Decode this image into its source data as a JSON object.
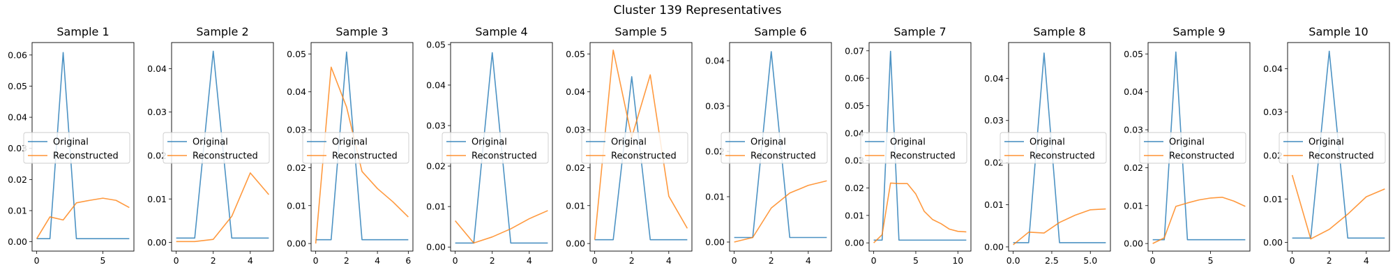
{
  "figure": {
    "title": "Cluster 139 Representatives",
    "colors": {
      "original": "#1f77b4",
      "reconstructed": "#ff7f0e"
    },
    "legend_labels": [
      "Original",
      "Reconstructed"
    ],
    "legend_placement": "center-left"
  },
  "chart_data": [
    {
      "type": "line",
      "title": "Sample 1",
      "xlim": [
        -0.35,
        7.35
      ],
      "ylim": [
        -0.003,
        0.064
      ],
      "xticks": [
        0,
        5
      ],
      "xtick_labels": [
        "0",
        "5"
      ],
      "yticks": [
        0.0,
        0.01,
        0.02,
        0.03,
        0.04,
        0.05,
        0.06
      ],
      "ytick_labels": [
        "0.00",
        "0.01",
        "0.02",
        "0.03",
        "0.04",
        "0.05",
        "0.06"
      ],
      "x": [
        0,
        1,
        2,
        3,
        4,
        5,
        6,
        7
      ],
      "series": [
        {
          "name": "Original",
          "values": [
            0.001,
            0.001,
            0.0608,
            0.001,
            0.001,
            0.001,
            0.001,
            0.001
          ]
        },
        {
          "name": "Reconstructed",
          "values": [
            0.001,
            0.008,
            0.007,
            0.0125,
            0.0133,
            0.014,
            0.0133,
            0.011
          ]
        }
      ]
    },
    {
      "type": "line",
      "title": "Sample 2",
      "xlim": [
        -0.25,
        5.25
      ],
      "ylim": [
        -0.002,
        0.046
      ],
      "xticks": [
        0,
        2,
        4
      ],
      "xtick_labels": [
        "0",
        "2",
        "4"
      ],
      "yticks": [
        0.0,
        0.01,
        0.02,
        0.03,
        0.04
      ],
      "ytick_labels": [
        "0.00",
        "0.01",
        "0.02",
        "0.03",
        "0.04"
      ],
      "x": [
        0,
        1,
        2,
        3,
        4,
        5
      ],
      "series": [
        {
          "name": "Original",
          "values": [
            0.001,
            0.001,
            0.044,
            0.001,
            0.001,
            0.001
          ]
        },
        {
          "name": "Reconstructed",
          "values": [
            0.0002,
            0.0002,
            0.0007,
            0.006,
            0.016,
            0.011
          ]
        }
      ]
    },
    {
      "type": "line",
      "title": "Sample 3",
      "xlim": [
        -0.3,
        6.3
      ],
      "ylim": [
        -0.002,
        0.053
      ],
      "xticks": [
        0,
        2,
        4,
        6
      ],
      "xtick_labels": [
        "0",
        "2",
        "4",
        "6"
      ],
      "yticks": [
        0.0,
        0.01,
        0.02,
        0.03,
        0.04,
        0.05
      ],
      "ytick_labels": [
        "0.00",
        "0.01",
        "0.02",
        "0.03",
        "0.04",
        "0.05"
      ],
      "x": [
        0,
        1,
        2,
        3,
        4,
        5,
        6
      ],
      "series": [
        {
          "name": "Original",
          "values": [
            0.001,
            0.001,
            0.0505,
            0.001,
            0.001,
            0.001,
            0.001
          ]
        },
        {
          "name": "Reconstructed",
          "values": [
            0.0,
            0.0465,
            0.036,
            0.019,
            0.0145,
            0.011,
            0.007
          ]
        }
      ]
    },
    {
      "type": "line",
      "title": "Sample 4",
      "xlim": [
        -0.25,
        5.25
      ],
      "ylim": [
        -0.001,
        0.0505
      ],
      "xticks": [
        0,
        2,
        4
      ],
      "xtick_labels": [
        "0",
        "2",
        "4"
      ],
      "yticks": [
        0.0,
        0.01,
        0.02,
        0.03,
        0.04,
        0.05
      ],
      "ytick_labels": [
        "0.00",
        "0.01",
        "0.02",
        "0.03",
        "0.04",
        "0.05"
      ],
      "x": [
        0,
        1,
        2,
        3,
        4,
        5
      ],
      "series": [
        {
          "name": "Original",
          "values": [
            0.001,
            0.001,
            0.048,
            0.001,
            0.001,
            0.001
          ]
        },
        {
          "name": "Reconstructed",
          "values": [
            0.0065,
            0.001,
            0.0025,
            0.0045,
            0.007,
            0.009
          ]
        }
      ]
    },
    {
      "type": "line",
      "title": "Sample 5",
      "xlim": [
        -0.25,
        5.25
      ],
      "ylim": [
        -0.002,
        0.053
      ],
      "xticks": [
        0,
        2,
        4
      ],
      "xtick_labels": [
        "0",
        "2",
        "4"
      ],
      "yticks": [
        0.0,
        0.01,
        0.02,
        0.03,
        0.04,
        0.05
      ],
      "ytick_labels": [
        "0.00",
        "0.01",
        "0.02",
        "0.03",
        "0.04",
        "0.05"
      ],
      "x": [
        0,
        1,
        2,
        3,
        4,
        5
      ],
      "series": [
        {
          "name": "Original",
          "values": [
            0.001,
            0.001,
            0.044,
            0.001,
            0.001,
            0.001
          ]
        },
        {
          "name": "Reconstructed",
          "values": [
            0.001,
            0.051,
            0.028,
            0.0445,
            0.0125,
            0.004
          ]
        }
      ]
    },
    {
      "type": "line",
      "title": "Sample 6",
      "xlim": [
        -0.25,
        5.25
      ],
      "ylim": [
        -0.002,
        0.044
      ],
      "xticks": [
        0,
        2,
        4
      ],
      "xtick_labels": [
        "0",
        "2",
        "4"
      ],
      "yticks": [
        0.0,
        0.01,
        0.02,
        0.03,
        0.04
      ],
      "ytick_labels": [
        "0.00",
        "0.01",
        "0.02",
        "0.03",
        "0.04"
      ],
      "x": [
        0,
        1,
        2,
        3,
        4,
        5
      ],
      "series": [
        {
          "name": "Original",
          "values": [
            0.001,
            0.001,
            0.042,
            0.001,
            0.001,
            0.001
          ]
        },
        {
          "name": "Reconstructed",
          "values": [
            0.0,
            0.001,
            0.0075,
            0.0108,
            0.0125,
            0.0135
          ]
        }
      ]
    },
    {
      "type": "line",
      "title": "Sample 7",
      "xlim": [
        -0.55,
        11.55
      ],
      "ylim": [
        -0.003,
        0.073
      ],
      "xticks": [
        0,
        5,
        10
      ],
      "xtick_labels": [
        "0",
        "5",
        "10"
      ],
      "yticks": [
        0.0,
        0.01,
        0.02,
        0.03,
        0.04,
        0.05,
        0.06,
        0.07
      ],
      "ytick_labels": [
        "0.00",
        "0.01",
        "0.02",
        "0.03",
        "0.04",
        "0.05",
        "0.06",
        "0.07"
      ],
      "x": [
        0,
        1,
        2,
        3,
        4,
        5,
        6,
        7,
        8,
        9,
        10,
        11
      ],
      "series": [
        {
          "name": "Original",
          "values": [
            0.001,
            0.001,
            0.0698,
            0.001,
            0.001,
            0.001,
            0.001,
            0.001,
            0.001,
            0.001,
            0.001,
            0.001
          ]
        },
        {
          "name": "Reconstructed",
          "values": [
            0.0,
            0.003,
            0.0218,
            0.0216,
            0.0216,
            0.0178,
            0.0115,
            0.0085,
            0.007,
            0.005,
            0.0042,
            0.004
          ]
        }
      ]
    },
    {
      "type": "line",
      "title": "Sample 8",
      "xlim": [
        -0.3,
        6.3
      ],
      "ylim": [
        -0.001,
        0.0485
      ],
      "xticks": [
        0,
        2.5,
        5
      ],
      "xtick_labels": [
        "0.0",
        "2.5",
        "5.0"
      ],
      "yticks": [
        0.0,
        0.01,
        0.02,
        0.03,
        0.04
      ],
      "ytick_labels": [
        "0.00",
        "0.01",
        "0.02",
        "0.03",
        "0.04"
      ],
      "x": [
        0,
        1,
        2,
        3,
        4,
        5,
        6
      ],
      "series": [
        {
          "name": "Original",
          "values": [
            0.001,
            0.001,
            0.046,
            0.001,
            0.001,
            0.001,
            0.001
          ]
        },
        {
          "name": "Reconstructed",
          "values": [
            0.0005,
            0.0035,
            0.0033,
            0.0058,
            0.0075,
            0.0088,
            0.009
          ]
        }
      ]
    },
    {
      "type": "line",
      "title": "Sample 9",
      "xlim": [
        -0.4,
        8.4
      ],
      "ylim": [
        -0.002,
        0.053
      ],
      "xticks": [
        0,
        5
      ],
      "xtick_labels": [
        "0",
        "5"
      ],
      "yticks": [
        0.0,
        0.01,
        0.02,
        0.03,
        0.04,
        0.05
      ],
      "ytick_labels": [
        "0.00",
        "0.01",
        "0.02",
        "0.03",
        "0.04",
        "0.05"
      ],
      "x": [
        0,
        1,
        2,
        3,
        4,
        5,
        6,
        7,
        8
      ],
      "series": [
        {
          "name": "Original",
          "values": [
            0.001,
            0.001,
            0.0505,
            0.001,
            0.001,
            0.001,
            0.001,
            0.001,
            0.001
          ]
        },
        {
          "name": "Reconstructed",
          "values": [
            0.0,
            0.0015,
            0.0098,
            0.0107,
            0.0115,
            0.012,
            0.0122,
            0.0112,
            0.0098
          ]
        }
      ]
    },
    {
      "type": "line",
      "title": "Sample 10",
      "xlim": [
        -0.25,
        5.25
      ],
      "ylim": [
        -0.002,
        0.046
      ],
      "xticks": [
        0,
        2,
        4
      ],
      "xtick_labels": [
        "0",
        "2",
        "4"
      ],
      "yticks": [
        0.0,
        0.01,
        0.02,
        0.03,
        0.04
      ],
      "ytick_labels": [
        "0.00",
        "0.01",
        "0.02",
        "0.03",
        "0.04"
      ],
      "x": [
        0,
        1,
        2,
        3,
        4,
        5
      ],
      "series": [
        {
          "name": "Original",
          "values": [
            0.001,
            0.001,
            0.044,
            0.001,
            0.001,
            0.001
          ]
        },
        {
          "name": "Reconstructed",
          "values": [
            0.0155,
            0.0008,
            0.003,
            0.0065,
            0.0105,
            0.0123
          ]
        }
      ]
    }
  ]
}
